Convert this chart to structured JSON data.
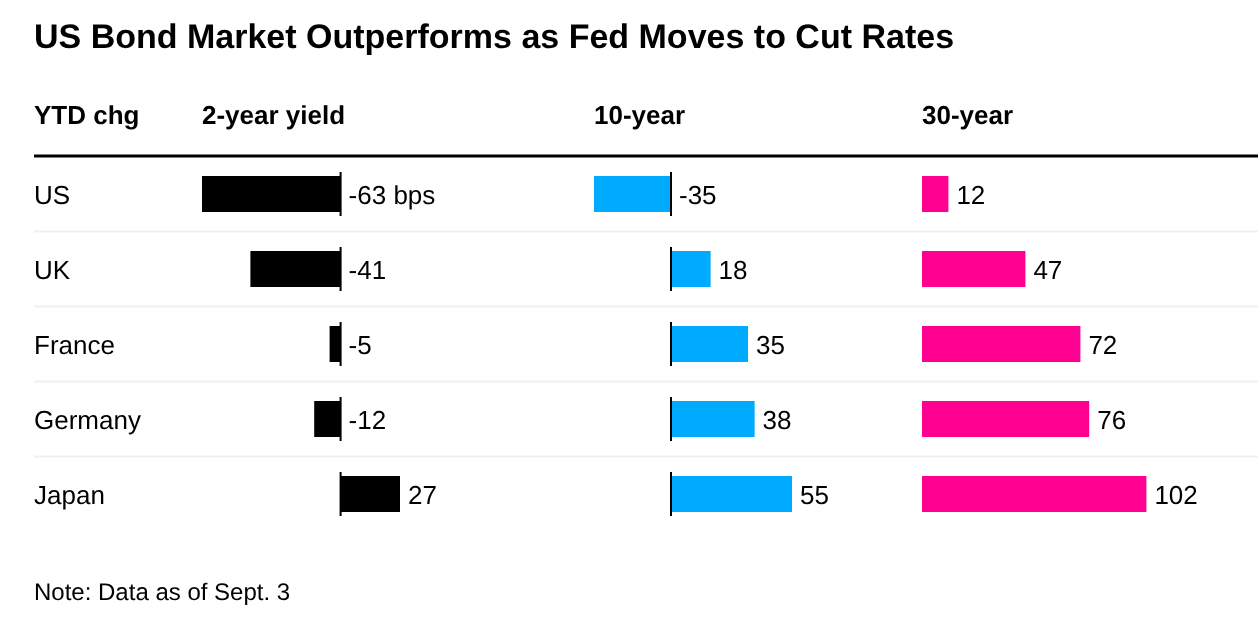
{
  "chart_data": [
    {
      "type": "other",
      "title": "US Bond Market Outperforms as Fed Moves to Cut Rates",
      "annotations": [
        "Note: Data as of Sept. 3"
      ]
    },
    {
      "type": "bar",
      "orientation": "horizontal",
      "title": "2-year yield",
      "ylabel": "YTD chg",
      "categories": [
        "US",
        "UK",
        "France",
        "Germany",
        "Japan"
      ],
      "values": [
        -63,
        -41,
        -5,
        -12,
        27
      ],
      "value_labels": [
        "-63 bps",
        "-41",
        "-5",
        "-12",
        "27"
      ],
      "color": "#000000",
      "tick_labels": "y",
      "ref_lines": [
        {
          "axis": "x",
          "value": 0,
          "color": "#000000"
        }
      ]
    },
    {
      "type": "bar",
      "orientation": "horizontal",
      "title": "10-year",
      "categories": [
        null,
        null,
        null,
        null,
        null
      ],
      "values": [
        -35,
        18,
        35,
        38,
        55
      ],
      "data_labels": true,
      "color": "#00aaff",
      "tick_labels": false,
      "ref_lines": [
        {
          "axis": "x",
          "value": 0,
          "color": "#000000"
        }
      ]
    },
    {
      "type": "bar",
      "orientation": "horizontal",
      "title": "30-year",
      "categories": [
        null,
        null,
        null,
        null,
        null
      ],
      "values": [
        12,
        47,
        72,
        76,
        102
      ],
      "data_labels": true,
      "color": "#ff0090",
      "tick_labels": false
    }
  ]
}
